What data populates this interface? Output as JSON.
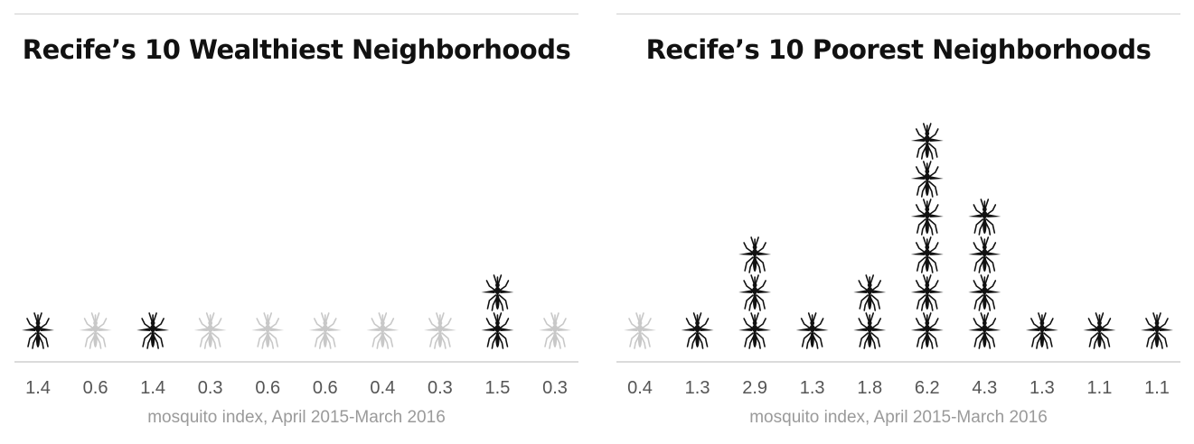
{
  "chart_data": [
    {
      "type": "pictogram",
      "title": "Recife’s 10 Wealthiest Neighborhoods",
      "xlabel": "mosquito index, April 2015-March 2016",
      "categories": [
        "1.4",
        "0.6",
        "1.4",
        "0.3",
        "0.6",
        "0.6",
        "0.4",
        "0.3",
        "1.5",
        "0.3"
      ],
      "values": [
        1.4,
        0.6,
        1.4,
        0.3,
        0.6,
        0.6,
        0.4,
        0.3,
        1.5,
        0.3
      ],
      "icon_count": [
        1,
        1,
        1,
        1,
        1,
        1,
        1,
        1,
        2,
        1
      ],
      "icon_muted": [
        false,
        true,
        false,
        true,
        true,
        true,
        true,
        true,
        false,
        true
      ]
    },
    {
      "type": "pictogram",
      "title": "Recife’s 10 Poorest Neighborhoods",
      "xlabel": "mosquito index, April 2015-March 2016",
      "categories": [
        "0.4",
        "1.3",
        "2.9",
        "1.3",
        "1.8",
        "6.2",
        "4.3",
        "1.3",
        "1.1",
        "1.1"
      ],
      "values": [
        0.4,
        1.3,
        2.9,
        1.3,
        1.8,
        6.2,
        4.3,
        1.3,
        1.1,
        1.1
      ],
      "icon_count": [
        1,
        1,
        3,
        1,
        2,
        6,
        4,
        1,
        1,
        1
      ],
      "icon_muted": [
        true,
        false,
        false,
        false,
        false,
        false,
        false,
        false,
        false,
        false
      ]
    }
  ],
  "icon": "mosquito-icon",
  "colors": {
    "icon": "#111111",
    "icon_muted": "#c8c8c8",
    "axis": "#cfcfcf",
    "label": "#555555",
    "xlabel": "#9a9a9a"
  }
}
